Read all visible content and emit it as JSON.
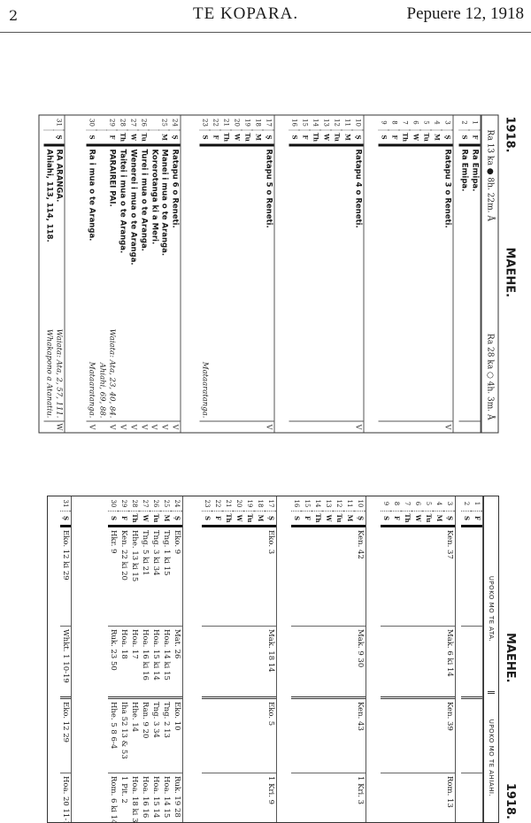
{
  "running_head": {
    "page": "2",
    "title": "TE KOPARA.",
    "date": "Pepuere 12, 1918"
  },
  "calendar": {
    "year": "1918.",
    "month": "MAEHE.",
    "moon_new": "Ra 13 ka ● 8h. 22m. Å",
    "moon_full": "Ra 28 ka ○ 4h. 3m. Å",
    "groups": [
      [
        {
          "d": "1",
          "w": "F",
          "t": "Ra Emipa.",
          "b": true
        },
        {
          "d": "2",
          "w": "S",
          "t": "Ra Emipa.",
          "b": true
        }
      ],
      [
        {
          "d": "3",
          "w": "Ş",
          "t": "Ratapu 3 o Reneti.",
          "b": true,
          "m": "V"
        },
        {
          "d": "4",
          "w": "M"
        },
        {
          "d": "5",
          "w": "Tu"
        },
        {
          "d": "6",
          "w": "W"
        },
        {
          "d": "7",
          "w": "Th"
        },
        {
          "d": "8",
          "w": "F"
        },
        {
          "d": "9",
          "w": "S"
        }
      ],
      [
        {
          "d": "10",
          "w": "Ş",
          "t": "Ratapu 4 o Reneti.",
          "b": true,
          "m": "V"
        },
        {
          "d": "11",
          "w": "M"
        },
        {
          "d": "12",
          "w": "Tu"
        },
        {
          "d": "13",
          "w": "W"
        },
        {
          "d": "14",
          "w": "Th"
        },
        {
          "d": "15",
          "w": "F"
        },
        {
          "d": "16",
          "w": "S"
        }
      ],
      [
        {
          "d": "17",
          "w": "Ş",
          "t": "Ratapu 5 o Reneti.",
          "b": true,
          "m": "V"
        },
        {
          "d": "18",
          "w": "M"
        },
        {
          "d": "19",
          "w": "Tu"
        },
        {
          "d": "20",
          "w": "W"
        },
        {
          "d": "21",
          "w": "Th"
        },
        {
          "d": "22",
          "w": "F"
        },
        {
          "d": "23",
          "w": "S",
          "r": "Mataaratanga."
        }
      ],
      [
        {
          "d": "24",
          "w": "Ş",
          "t": "Ratapu 6 o Reneti.",
          "b": true,
          "m": "V"
        },
        {
          "d": "25",
          "w": "M",
          "t": "Manei i mua o te Aranga.",
          "b": true,
          "m": "V",
          "sub": {
            "t": "Korerotanga ki a Meri.",
            "m": "V"
          }
        },
        {
          "d": "26",
          "w": "Tu",
          "t": "Turei i mua o te Aranga.",
          "b": true,
          "m": "V"
        },
        {
          "d": "27",
          "w": "W",
          "t": "Wenerei i mua o te Aranga.",
          "b": true,
          "m": "V"
        },
        {
          "d": "28",
          "w": "Th",
          "t": "Taitei i mua o te Aranga.",
          "b": true,
          "m": "V"
        },
        {
          "d": "29",
          "w": "F",
          "t": "PARAIREI PAI.",
          "b": true,
          "r": "Waiata: Ata, 23, 40, 84.",
          "m": "V",
          "sub": {
            "r": "Ahiahi, 69, 88."
          }
        },
        {
          "d": "30",
          "w": "S",
          "t": "Ra i mua o te Aranga.",
          "b": true,
          "r": "Mataaratanga.",
          "m": "V"
        }
      ],
      [
        {
          "d": "31",
          "w": "Ş",
          "t": "RA ARANGA.",
          "b": true,
          "r": "Waiata: Ata, 2, 57, 111.",
          "m": "W",
          "sub": {
            "t": "Ahiahi, 113, 114, 118.",
            "r": "Whakapono a Atanatiu."
          }
        }
      ]
    ]
  },
  "lessons": {
    "month": "MAEHE.",
    "year": "1918.",
    "morning_header": "UPOKO MO TE ATA.",
    "evening_header": "UPOKO MO TE AHIAHI.",
    "groups": [
      [
        {
          "d": "1",
          "w": "F",
          "c": [
            "",
            "",
            "",
            ""
          ]
        },
        {
          "d": "2",
          "w": "S",
          "c": [
            "",
            "",
            "",
            ""
          ]
        }
      ],
      [
        {
          "d": "3",
          "w": "Ş",
          "c": [
            "Ken. 37",
            "Mak. 6 ki 14",
            "Ken. 39",
            "Rom. 13"
          ]
        },
        {
          "d": "4",
          "w": "M"
        },
        {
          "d": "5",
          "w": "Tu"
        },
        {
          "d": "6",
          "w": "W"
        },
        {
          "d": "7",
          "w": "Th"
        },
        {
          "d": "8",
          "w": "F"
        },
        {
          "d": "9",
          "w": "S"
        }
      ],
      [
        {
          "d": "10",
          "w": "Ş",
          "c": [
            "Ken. 42",
            "Mak. 9 30",
            "Ken. 43",
            "1 Kri. 3"
          ]
        },
        {
          "d": "11",
          "w": "M"
        },
        {
          "d": "12",
          "w": "Tu"
        },
        {
          "d": "13",
          "w": "W"
        },
        {
          "d": "14",
          "w": "Th"
        },
        {
          "d": "15",
          "w": "F"
        },
        {
          "d": "16",
          "w": "S"
        }
      ],
      [
        {
          "d": "17",
          "w": "Ş",
          "c": [
            "Eko. 3",
            "Mak. 18 14",
            "Eko. 5",
            "1 Kri. 9"
          ]
        },
        {
          "d": "18",
          "w": "M"
        },
        {
          "d": "19",
          "w": "Tu"
        },
        {
          "d": "20",
          "w": "W"
        },
        {
          "d": "21",
          "w": "Th"
        },
        {
          "d": "22",
          "w": "F"
        },
        {
          "d": "23",
          "w": "S"
        }
      ],
      [
        {
          "d": "24",
          "w": "Ş",
          "c": [
            "Eko. 9",
            "Mat. 26",
            "Eko. 10",
            "Ruk. 19 28"
          ]
        },
        {
          "d": "25",
          "w": "M",
          "c": [
            "Tng. 1 ki 15",
            "Hoa. 14 ki 15",
            "Tng. 2 13",
            "Hoa. 14 15"
          ]
        },
        {
          "d": "26",
          "w": "Tu",
          "c": [
            "Tng. 3 ki 34",
            "Hoa. 15 ki 14",
            "Tng. 3 34",
            "Hoa. 15 14"
          ]
        },
        {
          "d": "27",
          "w": "W",
          "c": [
            "Tng. 5 ki 21",
            "Hoa. 16 ki 16",
            "Ran. 9 20",
            "Hoa. 16 16"
          ]
        },
        {
          "d": "28",
          "w": "Th",
          "c": [
            "Hhe. 13 ki 15",
            "Hoa. 17",
            "Hhe. 14",
            "Hoa. 18 ki 36"
          ]
        },
        {
          "d": "29",
          "w": "F",
          "c": [
            "Ken. 22 ki 20",
            "Hoa. 18",
            "Iha 52 13 & 53",
            "1 Pit. 2"
          ]
        },
        {
          "d": "30",
          "w": "S",
          "c": [
            "Hkr. 9",
            "Ruk. 23 50",
            "Hhe. 5 8 6-4",
            "Rom. 6 ki 14"
          ]
        }
      ],
      [
        {
          "d": "31",
          "w": "Ş",
          "c": [
            "Eko. 12 ki 29",
            "Whkt. 1 10-19",
            "Eko. 12 29",
            "Hoa. 20 11-19"
          ]
        }
      ]
    ]
  }
}
